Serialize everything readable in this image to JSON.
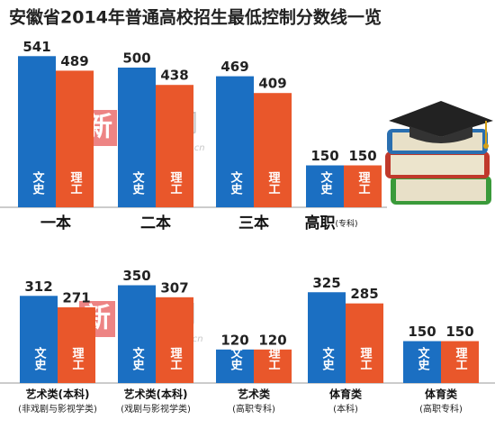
{
  "title": "安徽省2014年普通高校招生最低控制分数线一览",
  "watermark": {
    "logo": "新",
    "name": "安徽网",
    "url": "www.ahwang.cn"
  },
  "chart_data": [
    {
      "type": "bar",
      "categories": [
        "一本",
        "二本",
        "三本",
        "高职"
      ],
      "category_notes": [
        null,
        null,
        null,
        "(专科)"
      ],
      "series": [
        {
          "name": "文史",
          "color": "#1b6fc2",
          "values": [
            541,
            500,
            469,
            150
          ]
        },
        {
          "name": "理工",
          "color": "#e9572b",
          "values": [
            489,
            438,
            409,
            150
          ]
        }
      ]
    },
    {
      "type": "bar",
      "categories": [
        "艺术类(本科)",
        "艺术类(本科)",
        "艺术类",
        "体育类",
        "体育类"
      ],
      "category_notes": [
        "(非戏剧与影视学类)",
        "(戏剧与影视学类)",
        "(高职专科)",
        "(本科)",
        "(高职专科)"
      ],
      "series": [
        {
          "name": "文史",
          "color": "#1b6fc2",
          "values": [
            312,
            350,
            120,
            325,
            150
          ]
        },
        {
          "name": "理工",
          "color": "#e9572b",
          "values": [
            271,
            307,
            120,
            285,
            150
          ]
        }
      ]
    }
  ]
}
